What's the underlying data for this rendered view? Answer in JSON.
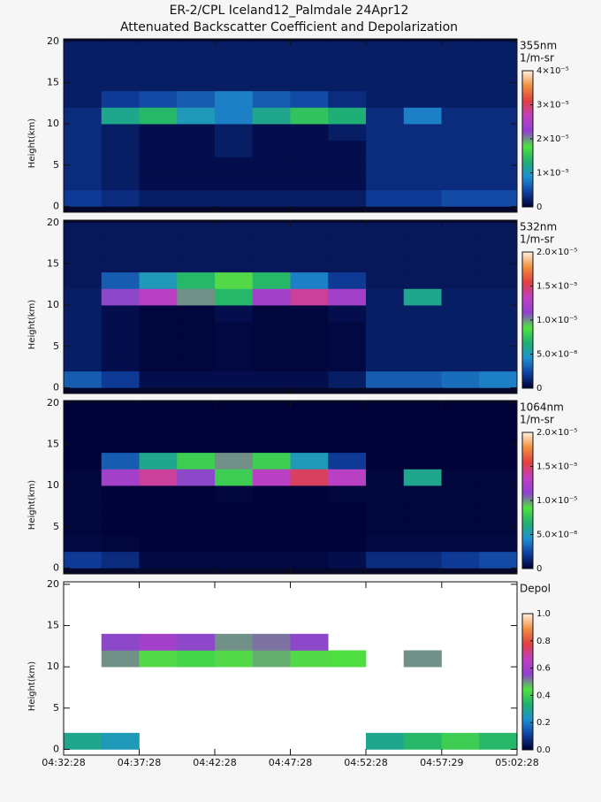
{
  "chart_data": [
    {
      "type": "heatmap",
      "title": "ER-2/CPL Iceland12_Palmdale 24Apr12",
      "subtitle": "Attenuated Backscatter Coefficient and Depolarization",
      "ylabel": "Height(km)",
      "colorbar_title": "355nm",
      "colorbar_units": "1/m-sr",
      "background": "#05082a",
      "xlim": [
        16348,
        18148
      ],
      "xbins": [
        16348,
        16498,
        16648,
        16798,
        16948,
        17098,
        17248,
        17398,
        17548,
        17698,
        17848,
        17998,
        18148
      ],
      "ylim": [
        -0.7,
        20.3
      ],
      "yticks": [
        0,
        5,
        10,
        15,
        20
      ],
      "ybins": [
        0,
        2,
        4,
        6,
        8,
        10,
        12,
        14,
        16,
        18,
        20
      ],
      "zlim": [
        0,
        4e-05
      ],
      "zticks": [
        0,
        {
          "value": 1e-05,
          "label": "1×10⁻⁵"
        },
        {
          "value": 2e-05,
          "label": "2×10⁻⁵"
        },
        {
          "value": 3e-05,
          "label": "3×10⁻⁵"
        },
        {
          "value": 4e-05,
          "label": "4×10⁻⁵"
        }
      ],
      "colormap": [
        "#000033",
        "#1040a0",
        "#2090d0",
        "#20b070",
        "#50e040",
        "#9040d0",
        "#c040c0",
        "#e04040",
        "#f09040",
        "#fff0e0"
      ],
      "values": [
        [
          4e-06,
          3e-06,
          2e-06,
          2e-06,
          2e-06,
          2e-06,
          2e-06,
          2e-06,
          4e-06,
          4e-06,
          5e-06,
          5e-06
        ],
        [
          3e-06,
          2e-06,
          1e-06,
          1e-06,
          1e-06,
          1e-06,
          1e-06,
          1e-06,
          3e-06,
          3e-06,
          3e-06,
          3e-06
        ],
        [
          3e-06,
          2e-06,
          1e-06,
          1e-06,
          1e-06,
          1e-06,
          1e-06,
          1e-06,
          3e-06,
          3e-06,
          3e-06,
          3e-06
        ],
        [
          3e-06,
          2e-06,
          1e-06,
          1e-06,
          2e-06,
          1e-06,
          1e-06,
          1e-06,
          3e-06,
          3e-06,
          3e-06,
          3e-06
        ],
        [
          3e-06,
          2e-06,
          1e-06,
          1e-06,
          2e-06,
          1e-06,
          1e-06,
          2e-06,
          3e-06,
          3e-06,
          3e-06,
          3e-06
        ],
        [
          3e-06,
          1.2e-05,
          1.4e-05,
          1e-05,
          8e-06,
          1.2e-05,
          1.5e-05,
          1.3e-05,
          3e-06,
          8e-06,
          3e-06,
          3e-06
        ],
        [
          2e-06,
          4e-06,
          5e-06,
          6e-06,
          8e-06,
          6e-06,
          5e-06,
          3e-06,
          2e-06,
          2e-06,
          2e-06,
          2e-06
        ],
        [
          2e-06,
          2e-06,
          2e-06,
          2e-06,
          2e-06,
          2e-06,
          2e-06,
          2e-06,
          2e-06,
          2e-06,
          2e-06,
          2e-06
        ],
        [
          2e-06,
          2e-06,
          2e-06,
          2e-06,
          2e-06,
          2e-06,
          2e-06,
          2e-06,
          2e-06,
          2e-06,
          2e-06,
          2e-06
        ],
        [
          2e-06,
          2e-06,
          2e-06,
          2e-06,
          2e-06,
          2e-06,
          2e-06,
          2e-06,
          2e-06,
          2e-06,
          2e-06,
          2e-06
        ]
      ]
    },
    {
      "type": "heatmap",
      "ylabel": "Height(km)",
      "colorbar_title": "532nm",
      "colorbar_units": "1/m-sr",
      "background": "#05082a",
      "xlim": [
        16348,
        18148
      ],
      "xbins": [
        16348,
        16498,
        16648,
        16798,
        16948,
        17098,
        17248,
        17398,
        17548,
        17698,
        17848,
        17998,
        18148
      ],
      "ylim": [
        -0.7,
        20.3
      ],
      "yticks": [
        0,
        5,
        10,
        15,
        20
      ],
      "ybins": [
        0,
        2,
        4,
        6,
        8,
        10,
        12,
        14,
        16,
        18,
        20
      ],
      "zlim": [
        0,
        2e-05
      ],
      "zticks": [
        0,
        {
          "value": 5e-06,
          "label": "5.0×10⁻⁶"
        },
        {
          "value": 1e-05,
          "label": "1.0×10⁻⁵"
        },
        {
          "value": 1.5e-05,
          "label": "1.5×10⁻⁵"
        },
        {
          "value": 2e-05,
          "label": "2.0×10⁻⁵"
        }
      ],
      "colormap": [
        "#000033",
        "#1040a0",
        "#2090d0",
        "#20b070",
        "#50e040",
        "#9040d0",
        "#c040c0",
        "#e04040",
        "#f09040",
        "#fff0e0"
      ],
      "values": [
        [
          3e-06,
          2e-06,
          5e-07,
          5e-07,
          5e-07,
          5e-07,
          5e-07,
          1e-06,
          3e-06,
          3e-06,
          3.5e-06,
          4e-06
        ],
        [
          1e-06,
          5e-07,
          2e-07,
          2e-07,
          3e-07,
          2e-07,
          2e-07,
          3e-07,
          1e-06,
          1e-06,
          1e-06,
          1e-06
        ],
        [
          1e-06,
          5e-07,
          2e-07,
          2e-07,
          3e-07,
          2e-07,
          2e-07,
          3e-07,
          1e-06,
          1e-06,
          1e-06,
          1e-06
        ],
        [
          1e-06,
          5e-07,
          2e-07,
          2e-07,
          3e-07,
          2e-07,
          2e-07,
          3e-07,
          1e-06,
          1e-06,
          1e-06,
          1e-06
        ],
        [
          1e-06,
          5e-07,
          2e-07,
          2e-07,
          5e-07,
          2e-07,
          2e-07,
          5e-07,
          1e-06,
          1e-06,
          1e-06,
          1e-06
        ],
        [
          1e-06,
          1.1e-05,
          1.3e-05,
          1e-05,
          7e-06,
          1.2e-05,
          1.4e-05,
          1.2e-05,
          1e-06,
          6e-06,
          1e-06,
          1e-06
        ],
        [
          8e-07,
          3e-06,
          5e-06,
          7e-06,
          9e-06,
          7e-06,
          4e-06,
          2e-06,
          8e-07,
          8e-07,
          8e-07,
          8e-07
        ],
        [
          8e-07,
          8e-07,
          8e-07,
          8e-07,
          8e-07,
          8e-07,
          8e-07,
          8e-07,
          8e-07,
          8e-07,
          8e-07,
          8e-07
        ],
        [
          8e-07,
          8e-07,
          8e-07,
          8e-07,
          8e-07,
          8e-07,
          8e-07,
          8e-07,
          8e-07,
          8e-07,
          8e-07,
          8e-07
        ],
        [
          8e-07,
          8e-07,
          8e-07,
          8e-07,
          8e-07,
          8e-07,
          8e-07,
          8e-07,
          8e-07,
          8e-07,
          8e-07,
          8e-07
        ]
      ]
    },
    {
      "type": "heatmap",
      "ylabel": "Height(km)",
      "colorbar_title": "1064nm",
      "colorbar_units": "1/m-sr",
      "background": "#05082a",
      "xlim": [
        16348,
        18148
      ],
      "xbins": [
        16348,
        16498,
        16648,
        16798,
        16948,
        17098,
        17248,
        17398,
        17548,
        17698,
        17848,
        17998,
        18148
      ],
      "ylim": [
        -0.7,
        20.3
      ],
      "yticks": [
        0,
        5,
        10,
        15,
        20
      ],
      "ybins": [
        0,
        2,
        4,
        6,
        8,
        10,
        12,
        14,
        16,
        18,
        20
      ],
      "zlim": [
        0,
        2e-05
      ],
      "zticks": [
        0,
        {
          "value": 5e-06,
          "label": "5.0×10⁻⁶"
        },
        {
          "value": 1e-05,
          "label": "1.0×10⁻⁵"
        },
        {
          "value": 1.5e-05,
          "label": "1.5×10⁻⁵"
        },
        {
          "value": 2e-05,
          "label": "2.0×10⁻⁵"
        }
      ],
      "colormap": [
        "#000033",
        "#1040a0",
        "#2090d0",
        "#20b070",
        "#50e040",
        "#9040d0",
        "#c040c0",
        "#e04040",
        "#f09040",
        "#fff0e0"
      ],
      "values": [
        [
          2e-06,
          1.5e-06,
          3e-07,
          3e-07,
          3e-07,
          3e-07,
          3e-07,
          5e-07,
          1.5e-06,
          1.5e-06,
          2e-06,
          2.5e-06
        ],
        [
          3e-07,
          2e-07,
          1e-07,
          1e-07,
          1e-07,
          1e-07,
          1e-07,
          1e-07,
          3e-07,
          3e-07,
          3e-07,
          3e-07
        ],
        [
          2e-07,
          1e-07,
          1e-07,
          1e-07,
          1e-07,
          1e-07,
          1e-07,
          1e-07,
          2e-07,
          2e-07,
          2e-07,
          2e-07
        ],
        [
          2e-07,
          1e-07,
          1e-07,
          1e-07,
          1e-07,
          1e-07,
          1e-07,
          1e-07,
          2e-07,
          2e-07,
          2e-07,
          2e-07
        ],
        [
          2e-07,
          1e-07,
          1e-07,
          1e-07,
          2e-07,
          1e-07,
          1e-07,
          2e-07,
          2e-07,
          2e-07,
          2e-07,
          2e-07
        ],
        [
          2e-07,
          1.2e-05,
          1.4e-05,
          1.1e-05,
          8e-06,
          1.3e-05,
          1.5e-05,
          1.3e-05,
          2e-07,
          6e-06,
          2e-07,
          2e-07
        ],
        [
          1e-07,
          3e-06,
          6e-06,
          8e-06,
          1e-05,
          8e-06,
          5e-06,
          2e-06,
          1e-07,
          1e-07,
          1e-07,
          1e-07
        ],
        [
          1e-07,
          1e-07,
          1e-07,
          1e-07,
          1e-07,
          1e-07,
          1e-07,
          1e-07,
          1e-07,
          1e-07,
          1e-07,
          1e-07
        ],
        [
          1e-07,
          1e-07,
          1e-07,
          1e-07,
          1e-07,
          1e-07,
          1e-07,
          1e-07,
          1e-07,
          1e-07,
          1e-07,
          1e-07
        ],
        [
          1e-07,
          1e-07,
          1e-07,
          1e-07,
          1e-07,
          1e-07,
          1e-07,
          1e-07,
          1e-07,
          1e-07,
          1e-07,
          1e-07
        ]
      ]
    },
    {
      "type": "heatmap",
      "ylabel": "Height(km)",
      "colorbar_title": "Depol",
      "background": "#ffffff",
      "xlim": [
        16348,
        18148
      ],
      "xbins": [
        16348,
        16498,
        16648,
        16798,
        16948,
        17098,
        17248,
        17398,
        17548,
        17698,
        17848,
        17998,
        18148
      ],
      "xticks": [
        {
          "value": 16348,
          "label": "04:32:28"
        },
        {
          "value": 16648,
          "label": "04:37:28"
        },
        {
          "value": 16948,
          "label": "04:42:28"
        },
        {
          "value": 17248,
          "label": "04:47:28"
        },
        {
          "value": 17548,
          "label": "04:52:28"
        },
        {
          "value": 17849,
          "label": "04:57:29"
        },
        {
          "value": 18148,
          "label": "05:02:28"
        }
      ],
      "ylim": [
        -0.7,
        20.3
      ],
      "yticks": [
        0,
        5,
        10,
        15,
        20
      ],
      "ybins": [
        0,
        2,
        4,
        6,
        8,
        10,
        12,
        14,
        16,
        18,
        20
      ],
      "zlim": [
        0,
        1
      ],
      "zticks": [
        {
          "value": 0,
          "label": "0.0"
        },
        0.2,
        0.4,
        0.6,
        0.8,
        {
          "value": 1,
          "label": "1.0"
        }
      ],
      "colormap": [
        "#000033",
        "#1040a0",
        "#2090d0",
        "#20b070",
        "#50e040",
        "#9040d0",
        "#c040c0",
        "#e04040",
        "#f09040",
        "#fff0e0"
      ],
      "values": [
        [
          0.3,
          0.25,
          null,
          null,
          null,
          null,
          null,
          null,
          0.3,
          0.35,
          0.4,
          0.35
        ],
        [
          null,
          null,
          null,
          null,
          null,
          null,
          null,
          null,
          null,
          null,
          null,
          null
        ],
        [
          null,
          null,
          null,
          null,
          null,
          null,
          null,
          null,
          null,
          null,
          null,
          null
        ],
        [
          null,
          null,
          null,
          null,
          null,
          null,
          null,
          null,
          null,
          null,
          null,
          null
        ],
        [
          null,
          null,
          null,
          null,
          null,
          null,
          null,
          null,
          null,
          null,
          null,
          null
        ],
        [
          null,
          0.5,
          0.45,
          0.42,
          0.45,
          0.48,
          0.45,
          0.44,
          null,
          0.5,
          null,
          null
        ],
        [
          null,
          0.55,
          0.6,
          0.55,
          0.5,
          0.52,
          0.55,
          null,
          null,
          null,
          null,
          null
        ],
        [
          null,
          null,
          null,
          null,
          null,
          null,
          null,
          null,
          null,
          null,
          null,
          null
        ],
        [
          null,
          null,
          null,
          null,
          null,
          null,
          null,
          null,
          null,
          null,
          null,
          null
        ],
        [
          null,
          null,
          null,
          null,
          null,
          null,
          null,
          null,
          null,
          null,
          null,
          null
        ]
      ]
    }
  ]
}
